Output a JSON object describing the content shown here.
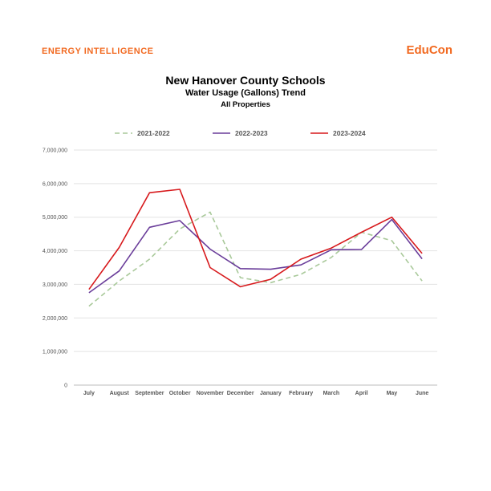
{
  "brand": {
    "left": "ENERGY INTELLIGENCE",
    "right": "EduCon",
    "color": "#f26a21"
  },
  "chart_data": {
    "type": "line",
    "title": "New Hanover County Schools",
    "subtitle": "Water Usage (Gallons) Trend",
    "subtitle2": "All Properties",
    "categories": [
      "July",
      "August",
      "September",
      "October",
      "November",
      "December",
      "January",
      "February",
      "March",
      "April",
      "May",
      "June"
    ],
    "ylim": [
      0,
      7000000
    ],
    "yticks": [
      0,
      1000000,
      2000000,
      3000000,
      4000000,
      5000000,
      6000000,
      7000000
    ],
    "ytick_labels": [
      "0",
      "1,000,000",
      "2,000,000",
      "3,000,000",
      "4,000,000",
      "5,000,000",
      "6,000,000",
      "7,000,000"
    ],
    "grid": true,
    "legend": "top",
    "series": [
      {
        "name": "2021-2022",
        "color": "#a9c99a",
        "style": "dashed",
        "values": [
          2350000,
          3100000,
          3750000,
          4650000,
          5150000,
          3200000,
          3050000,
          3300000,
          3800000,
          4550000,
          4300000,
          3100000
        ]
      },
      {
        "name": "2022-2023",
        "color": "#6a3d9a",
        "style": "solid",
        "values": [
          2750000,
          3400000,
          4700000,
          4900000,
          4050000,
          3470000,
          3450000,
          3580000,
          4030000,
          4040000,
          4930000,
          3760000
        ]
      },
      {
        "name": "2023-2024",
        "color": "#d7191c",
        "style": "solid",
        "values": [
          2850000,
          4100000,
          5730000,
          5830000,
          3500000,
          2930000,
          3150000,
          3750000,
          4080000,
          4550000,
          5000000,
          3920000
        ]
      }
    ]
  }
}
